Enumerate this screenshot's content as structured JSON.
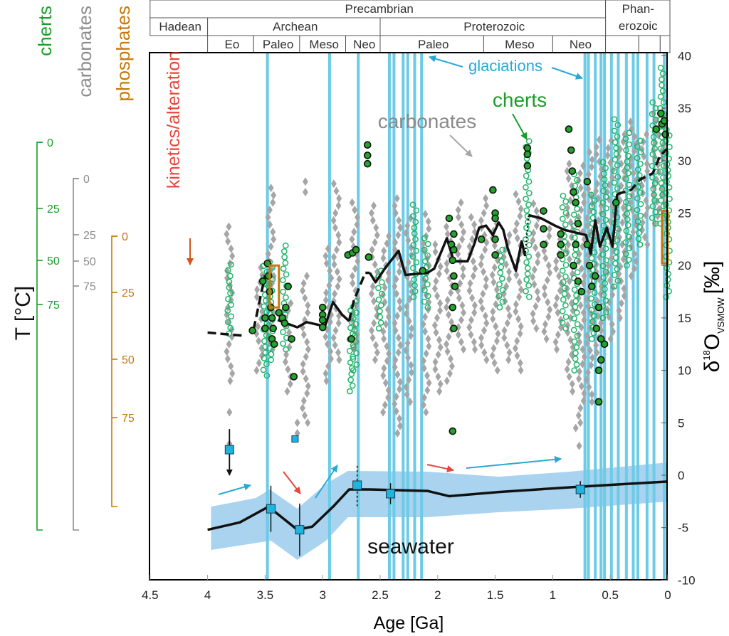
{
  "chart_data": {
    "type": "scatter",
    "xlabel": "Age [Ga]",
    "ylabel_main": "δ",
    "ylabel_sup": "18",
    "ylabel_o": "O",
    "ylabel_sub": "VSMOW",
    "ylabel_unit": "[‰]",
    "xlim": [
      4.5,
      0
    ],
    "ylim": [
      -10,
      40
    ],
    "x_ticks": [
      "4.5",
      "4",
      "3.5",
      "3",
      "2.5",
      "2",
      "1.5",
      "1",
      "0.5",
      "0"
    ],
    "y_ticks": [
      "40",
      "35",
      "30",
      "25",
      "20",
      "15",
      "10",
      "5",
      "0",
      "-5",
      "-10"
    ],
    "timescale": {
      "row1": [
        {
          "label": "Precambrian",
          "from": 4.5,
          "to": 0.541
        },
        {
          "label": "Phan-\nerozoic",
          "from": 0.541,
          "to": 0
        }
      ],
      "row2": [
        {
          "label": "Hadean",
          "from": 4.5,
          "to": 4.0
        },
        {
          "label": "Archean",
          "from": 4.0,
          "to": 2.5
        },
        {
          "label": "Proterozoic",
          "from": 2.5,
          "to": 0.541
        }
      ],
      "row3": [
        {
          "label": "Eo",
          "from": 4.0,
          "to": 3.6
        },
        {
          "label": "Paleo",
          "from": 3.6,
          "to": 3.2
        },
        {
          "label": "Meso",
          "from": 3.2,
          "to": 2.8
        },
        {
          "label": "Neo",
          "from": 2.8,
          "to": 2.5
        },
        {
          "label": "Paleo",
          "from": 2.5,
          "to": 1.6
        },
        {
          "label": "Meso",
          "from": 1.6,
          "to": 1.0
        },
        {
          "label": "Neo",
          "from": 1.0,
          "to": 0.541
        },
        {
          "label": "",
          "from": 0.541,
          "to": 0.252
        },
        {
          "label": "",
          "from": 0.252,
          "to": 0.066
        },
        {
          "label": "",
          "from": 0.066,
          "to": 0
        }
      ]
    },
    "temperature_scales": {
      "title": "T [°C]",
      "cherts": {
        "label": "cherts",
        "color": "#1a9e2a",
        "ticks": [
          "0",
          "25",
          "50",
          "75"
        ]
      },
      "carbonates": {
        "label": "carbonates",
        "color": "#8c8c8c",
        "ticks": [
          "0",
          "25",
          "50",
          "75"
        ]
      },
      "phosphates": {
        "label": "phosphates",
        "color": "#c8780a",
        "ticks": [
          "0",
          "25",
          "50",
          "75"
        ]
      }
    },
    "annotations": {
      "glaciations": "glaciations",
      "cherts": "cherts",
      "carbonates": "carbonates",
      "kinetics": "kinetics/alteration",
      "seawater": "seawater"
    },
    "colors": {
      "glaciation": "#6ccbe6",
      "seawater_band": "#a9d3ef",
      "carbonate": "#a6a6a6",
      "chert_open": "#20b46a",
      "chert_filled": "#23a22c",
      "phosphate": "#c8780a",
      "seawater_square": "#1fb3e0",
      "label_green": "#1a9e2a",
      "label_cyan": "#27a9d6",
      "label_red": "#e8453c"
    },
    "glaciations": [
      3.48,
      2.94,
      2.69,
      2.42,
      2.38,
      2.3,
      2.26,
      2.2,
      2.14,
      0.72,
      0.69,
      0.63,
      0.58,
      0.55,
      0.49,
      0.43,
      0.36,
      0.3,
      0.26,
      0.18,
      0.12,
      0.03
    ],
    "carbonate_columns": [
      [
        3.81,
        9,
        24
      ],
      [
        3.55,
        10,
        20
      ],
      [
        3.45,
        12,
        28
      ],
      [
        3.3,
        8,
        17
      ],
      [
        3.15,
        5,
        19
      ],
      [
        2.95,
        9,
        22
      ],
      [
        2.88,
        11,
        28
      ],
      [
        2.72,
        12,
        26
      ],
      [
        2.55,
        11,
        26
      ],
      [
        2.45,
        6,
        23
      ],
      [
        2.35,
        4,
        27
      ],
      [
        2.25,
        7,
        25
      ],
      [
        2.1,
        6,
        25
      ],
      [
        2.0,
        8,
        22
      ],
      [
        1.9,
        9,
        24
      ],
      [
        1.8,
        12,
        26
      ],
      [
        1.7,
        12,
        25
      ],
      [
        1.6,
        11,
        27
      ],
      [
        1.5,
        10,
        24
      ],
      [
        1.4,
        11,
        23
      ],
      [
        1.3,
        10,
        27
      ],
      [
        1.15,
        14,
        26
      ],
      [
        1.05,
        13,
        24
      ],
      [
        0.95,
        12,
        23
      ],
      [
        0.85,
        8,
        30
      ],
      [
        0.75,
        5,
        30
      ],
      [
        0.68,
        7,
        31
      ],
      [
        0.6,
        11,
        32
      ],
      [
        0.5,
        13,
        32
      ],
      [
        0.4,
        15,
        33
      ],
      [
        0.3,
        19,
        34
      ],
      [
        0.2,
        22,
        33
      ],
      [
        0.1,
        24,
        35
      ],
      [
        0.03,
        26,
        35
      ]
    ],
    "carbonate_isolated": [
      [
        3.81,
        6
      ],
      [
        3.81,
        3
      ],
      [
        3.22,
        5
      ],
      [
        3.22,
        4
      ],
      [
        0.8,
        4.5
      ],
      [
        0.77,
        2.8
      ],
      [
        3.15,
        28
      ],
      [
        3.15,
        27
      ]
    ],
    "chert_open_columns": [
      [
        3.81,
        13.5,
        20.5
      ],
      [
        3.5,
        9.5,
        20
      ],
      [
        3.45,
        11,
        20.5
      ],
      [
        3.33,
        12,
        22
      ],
      [
        2.75,
        8,
        16
      ],
      [
        2.72,
        10,
        17
      ],
      [
        2.5,
        14,
        20
      ],
      [
        2.2,
        17,
        26
      ],
      [
        2.1,
        16,
        23
      ],
      [
        1.45,
        16,
        22
      ],
      [
        1.22,
        17,
        32
      ],
      [
        0.9,
        14,
        27
      ],
      [
        0.8,
        10,
        29
      ],
      [
        0.65,
        13,
        27
      ],
      [
        0.55,
        15,
        30
      ],
      [
        0.45,
        18,
        34
      ],
      [
        0.35,
        20,
        33
      ],
      [
        0.25,
        22,
        32
      ],
      [
        0.12,
        24,
        36
      ],
      [
        0.05,
        24,
        39
      ],
      [
        0.0,
        17,
        33
      ]
    ],
    "chert_filled": [
      [
        3.61,
        13.8
      ],
      [
        3.52,
        18.5
      ],
      [
        3.48,
        20.2
      ],
      [
        3.47,
        19
      ],
      [
        3.46,
        17.5
      ],
      [
        3.45,
        16
      ],
      [
        3.44,
        15
      ],
      [
        3.43,
        14
      ],
      [
        3.44,
        13
      ],
      [
        3.42,
        12.5
      ],
      [
        3.5,
        15
      ],
      [
        3.5,
        14
      ],
      [
        3.38,
        15.5
      ],
      [
        3.35,
        15
      ],
      [
        3.33,
        14.5
      ],
      [
        3.32,
        16
      ],
      [
        3.3,
        18
      ],
      [
        3.27,
        13
      ],
      [
        3.25,
        9.4
      ],
      [
        3.0,
        16
      ],
      [
        3.0,
        15.3
      ],
      [
        3.0,
        14.8
      ],
      [
        3.0,
        14.1
      ],
      [
        2.78,
        21
      ],
      [
        2.74,
        21.2
      ],
      [
        2.71,
        21.5
      ],
      [
        2.75,
        13
      ],
      [
        2.6,
        20.8
      ],
      [
        2.61,
        31.5
      ],
      [
        2.61,
        30.5
      ],
      [
        2.61,
        29.7
      ],
      [
        2.13,
        19.5
      ],
      [
        1.9,
        24.5
      ],
      [
        1.88,
        22
      ],
      [
        1.87,
        20.5
      ],
      [
        1.86,
        23
      ],
      [
        1.86,
        21.5
      ],
      [
        1.86,
        19
      ],
      [
        1.85,
        18
      ],
      [
        1.87,
        16
      ],
      [
        1.86,
        14
      ],
      [
        1.87,
        4.2
      ],
      [
        1.62,
        22.5
      ],
      [
        1.52,
        27.2
      ],
      [
        1.5,
        25
      ],
      [
        1.5,
        24.5
      ],
      [
        1.5,
        22.5
      ],
      [
        1.5,
        21
      ],
      [
        1.22,
        31.2
      ],
      [
        1.22,
        30.6
      ],
      [
        1.22,
        29.5
      ],
      [
        1.08,
        25.2
      ],
      [
        1.08,
        23.5
      ],
      [
        1.08,
        22
      ],
      [
        0.93,
        23
      ],
      [
        0.93,
        22
      ],
      [
        0.93,
        21
      ],
      [
        0.86,
        33
      ],
      [
        0.84,
        31
      ],
      [
        0.83,
        29
      ],
      [
        0.82,
        27
      ],
      [
        0.8,
        26
      ],
      [
        0.78,
        24
      ],
      [
        0.8,
        22
      ],
      [
        0.82,
        20
      ],
      [
        0.78,
        18.5
      ],
      [
        0.75,
        17.5
      ],
      [
        0.7,
        28
      ],
      [
        0.7,
        22
      ],
      [
        0.68,
        20
      ],
      [
        0.66,
        18
      ],
      [
        0.62,
        14
      ],
      [
        0.63,
        19
      ],
      [
        0.6,
        16
      ],
      [
        0.58,
        13
      ],
      [
        0.58,
        11
      ],
      [
        0.6,
        10
      ],
      [
        0.6,
        7
      ],
      [
        0.55,
        12.5
      ],
      [
        0.45,
        26
      ],
      [
        0.06,
        34.5
      ],
      [
        0.05,
        33.5
      ],
      [
        0.03,
        33.8
      ],
      [
        0.02,
        32.5
      ],
      [
        0.1,
        33
      ]
    ],
    "phosphate_boxes": [
      [
        3.46,
        3.38,
        16,
        20
      ],
      [
        0.05,
        0.0,
        20.2,
        25.2
      ]
    ],
    "trend_segments": [
      {
        "style": "dashed",
        "points": [
          [
            4.0,
            13.6
          ],
          [
            3.68,
            13.3
          ]
        ]
      },
      {
        "style": "dashed",
        "points": [
          [
            3.6,
            13.9
          ],
          [
            3.5,
            19.1
          ]
        ]
      },
      {
        "style": "solid",
        "points": [
          [
            3.39,
            14.8
          ],
          [
            3.22,
            14.1
          ],
          [
            3.14,
            14.6
          ],
          [
            2.98,
            14.2
          ],
          [
            2.91,
            16.5
          ],
          [
            2.83,
            15.3
          ],
          [
            2.77,
            14.7
          ]
        ]
      },
      {
        "style": "dashed",
        "points": [
          [
            2.77,
            14.7
          ],
          [
            2.73,
            16.6
          ],
          [
            2.63,
            19.3
          ],
          [
            2.59,
            19.3
          ]
        ]
      },
      {
        "style": "solid",
        "points": [
          [
            2.59,
            19.3
          ],
          [
            2.54,
            18.4
          ],
          [
            2.46,
            19.7
          ],
          [
            2.34,
            21.4
          ],
          [
            2.28,
            19.1
          ],
          [
            2.09,
            19.3
          ],
          [
            2.03,
            19.7
          ],
          [
            1.92,
            22.6
          ],
          [
            1.86,
            20.4
          ],
          [
            1.74,
            20.4
          ],
          [
            1.68,
            22.1
          ],
          [
            1.64,
            23.6
          ],
          [
            1.58,
            23.8
          ],
          [
            1.52,
            22.9
          ],
          [
            1.47,
            24.1
          ],
          [
            1.43,
            23.4
          ],
          [
            1.39,
            21.6
          ],
          [
            1.32,
            19.5
          ],
          [
            1.27,
            22.3
          ],
          [
            1.24,
            20.9
          ]
        ]
      },
      {
        "style": "dotted",
        "points": [
          [
            1.24,
            20.9
          ],
          [
            1.21,
            24.8
          ]
        ]
      },
      {
        "style": "solid",
        "points": [
          [
            1.21,
            24.8
          ],
          [
            1.1,
            24.5
          ],
          [
            0.98,
            23.8
          ],
          [
            0.9,
            23.4
          ],
          [
            0.71,
            22.9
          ],
          [
            0.67,
            21.1
          ],
          [
            0.63,
            24.3
          ],
          [
            0.59,
            21.8
          ],
          [
            0.53,
            23.6
          ],
          [
            0.48,
            21.8
          ],
          [
            0.44,
            26.8
          ]
        ]
      },
      {
        "style": "dashed",
        "points": [
          [
            0.44,
            26.8
          ],
          [
            0.32,
            27.2
          ],
          [
            0.24,
            28.2
          ],
          [
            0.13,
            28.8
          ],
          [
            0.07,
            30.4
          ],
          [
            0.01,
            31.1
          ]
        ]
      }
    ],
    "seawater_curve": [
      [
        4.0,
        -5.2
      ],
      [
        3.72,
        -4.5
      ],
      [
        3.47,
        -3.0
      ],
      [
        3.22,
        -5.2
      ],
      [
        3.09,
        -4.9
      ],
      [
        2.9,
        -2.9
      ],
      [
        2.77,
        -1.36
      ],
      [
        2.59,
        -1.36
      ],
      [
        2.09,
        -1.5
      ],
      [
        1.9,
        -2.0
      ],
      [
        1.47,
        -1.6
      ],
      [
        0.85,
        -1.15
      ],
      [
        0.0,
        -0.6
      ]
    ],
    "seawater_band_upper": [
      [
        3.97,
        -2.99
      ],
      [
        3.58,
        -2.17
      ],
      [
        3.46,
        -1.36
      ],
      [
        3.22,
        -3.19
      ],
      [
        2.97,
        -0.81
      ],
      [
        2.78,
        0.41
      ],
      [
        2.09,
        0.34
      ],
      [
        1.47,
        -0.14
      ],
      [
        0.85,
        0.34
      ],
      [
        0.0,
        1.22
      ]
    ],
    "seawater_band_lower": [
      [
        3.97,
        -7.12
      ],
      [
        3.45,
        -6.24
      ],
      [
        3.22,
        -8.07
      ],
      [
        2.97,
        -6.24
      ],
      [
        2.78,
        -4.0
      ],
      [
        2.09,
        -4.0
      ],
      [
        1.47,
        -3.53
      ],
      [
        0.85,
        -3.19
      ],
      [
        0.0,
        -2.51
      ]
    ],
    "seawater_estimates": [
      {
        "age": 3.81,
        "value": 2.44,
        "arrow_from": 4.4,
        "arrow_to": 0
      },
      {
        "age": 3.24,
        "value": 3.46
      },
      {
        "age": 3.45,
        "value": -3.2,
        "err": 2.2
      },
      {
        "age": 3.2,
        "value": -5.2,
        "err": 2.5
      },
      {
        "age": 2.7,
        "value": -0.95,
        "dashed_to": 0.9
      },
      {
        "age": 2.41,
        "value": -1.76,
        "err": 1.0
      },
      {
        "age": 0.76,
        "value": -1.36,
        "err": 0.8
      }
    ]
  }
}
